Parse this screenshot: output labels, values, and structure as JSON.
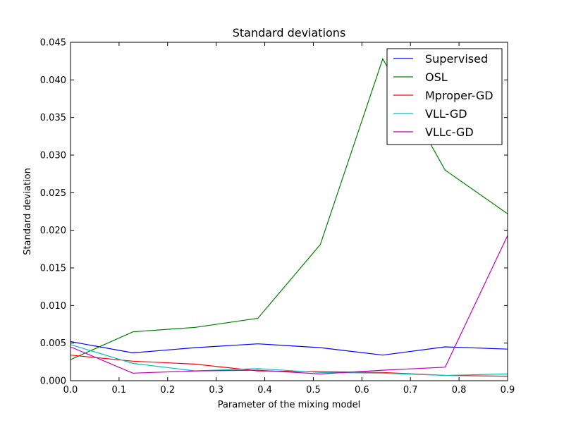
{
  "chart_data": {
    "type": "line",
    "title": "Standard deviations",
    "xlabel": "Parameter of the mixing model",
    "ylabel": "Standard deviation",
    "xlim": [
      0.0,
      0.9
    ],
    "ylim": [
      0.0,
      0.045
    ],
    "x_ticks": [
      "0.0",
      "0.1",
      "0.2",
      "0.3",
      "0.4",
      "0.5",
      "0.6",
      "0.7",
      "0.8",
      "0.9"
    ],
    "x_tick_values": [
      0.0,
      0.1,
      0.2,
      0.3,
      0.4,
      0.5,
      0.6,
      0.7,
      0.8,
      0.9
    ],
    "y_ticks": [
      "0.000",
      "0.005",
      "0.010",
      "0.015",
      "0.020",
      "0.025",
      "0.030",
      "0.035",
      "0.040",
      "0.045"
    ],
    "y_tick_values": [
      0.0,
      0.005,
      0.01,
      0.015,
      0.02,
      0.025,
      0.03,
      0.035,
      0.04,
      0.045
    ],
    "grid": false,
    "legend_position": "top-right",
    "x": [
      0.0,
      0.1286,
      0.2571,
      0.3857,
      0.5143,
      0.6429,
      0.7714,
      0.9
    ],
    "series": [
      {
        "name": "Supervised",
        "color": "#0000ff",
        "values": [
          0.0052,
          0.0037,
          0.0044,
          0.0049,
          0.0044,
          0.0034,
          0.0045,
          0.0042
        ]
      },
      {
        "name": "OSL",
        "color": "#008000",
        "values": [
          0.0028,
          0.0065,
          0.0071,
          0.0083,
          0.0181,
          0.0428,
          0.028,
          0.0222
        ]
      },
      {
        "name": "Mproper-GD",
        "color": "#ff0000",
        "values": [
          0.0034,
          0.0026,
          0.0022,
          0.0013,
          0.0012,
          0.0011,
          0.0007,
          0.0006
        ]
      },
      {
        "name": "VLL-GD",
        "color": "#00bfbf",
        "values": [
          0.0048,
          0.0023,
          0.0013,
          0.0016,
          0.0011,
          0.001,
          0.0007,
          0.0009
        ]
      },
      {
        "name": "VLLc-GD",
        "color": "#bf00bf",
        "values": [
          0.0045,
          0.001,
          0.0013,
          0.0014,
          0.0009,
          0.0014,
          0.0018,
          0.0193
        ]
      }
    ]
  }
}
